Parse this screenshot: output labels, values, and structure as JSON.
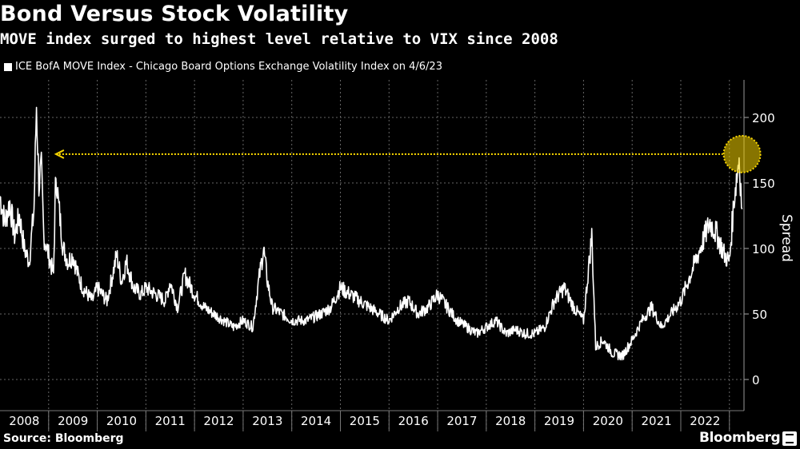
{
  "header": {
    "title": "Bond Versus Stock Volatility",
    "subtitle": "MOVE index surged to highest level relative to VIX since 2008"
  },
  "footer": {
    "source": "Source: Bloomberg",
    "brand": "Bloomberg"
  },
  "colors": {
    "background": "#000000",
    "line": "#ffffff",
    "highlight": "#f5d300",
    "grid": "#666666"
  },
  "chart_data": {
    "type": "line",
    "title": "Bond Versus Stock Volatility",
    "subtitle": "MOVE index surged to highest level relative to VIX since 2008",
    "series": [
      {
        "name": "ICE BofA MOVE Index - Chicago Board Options Exchange Volatility Index on 4/6/23",
        "x": [
          2008.0,
          2008.1,
          2008.2,
          2008.3,
          2008.4,
          2008.5,
          2008.6,
          2008.7,
          2008.75,
          2008.8,
          2008.85,
          2008.9,
          2009.0,
          2009.1,
          2009.15,
          2009.2,
          2009.3,
          2009.4,
          2009.5,
          2009.6,
          2009.7,
          2009.8,
          2009.9,
          2010.0,
          2010.2,
          2010.4,
          2010.5,
          2010.6,
          2010.75,
          2010.9,
          2011.0,
          2011.2,
          2011.4,
          2011.5,
          2011.65,
          2011.8,
          2012.0,
          2012.2,
          2012.4,
          2012.6,
          2012.8,
          2013.0,
          2013.2,
          2013.3,
          2013.42,
          2013.5,
          2013.6,
          2013.8,
          2014.0,
          2014.3,
          2014.6,
          2014.8,
          2015.0,
          2015.2,
          2015.4,
          2015.6,
          2015.8,
          2016.0,
          2016.2,
          2016.4,
          2016.6,
          2016.8,
          2017.0,
          2017.2,
          2017.4,
          2017.6,
          2017.8,
          2018.0,
          2018.2,
          2018.4,
          2018.6,
          2018.8,
          2019.0,
          2019.2,
          2019.4,
          2019.6,
          2019.8,
          2020.0,
          2020.17,
          2020.25,
          2020.4,
          2020.6,
          2020.8,
          2021.0,
          2021.2,
          2021.4,
          2021.6,
          2021.8,
          2022.0,
          2022.2,
          2022.4,
          2022.6,
          2022.75,
          2022.9,
          2023.0,
          2023.1,
          2023.2,
          2023.26
        ],
        "y": [
          140,
          120,
          135,
          110,
          125,
          100,
          90,
          130,
          210,
          150,
          160,
          110,
          95,
          80,
          160,
          135,
          100,
          90,
          95,
          80,
          70,
          65,
          60,
          70,
          60,
          95,
          75,
          90,
          70,
          65,
          70,
          65,
          60,
          75,
          55,
          80,
          65,
          55,
          50,
          45,
          40,
          45,
          40,
          70,
          100,
          75,
          55,
          50,
          45,
          45,
          50,
          55,
          70,
          65,
          60,
          55,
          50,
          45,
          55,
          60,
          50,
          55,
          65,
          55,
          45,
          40,
          35,
          40,
          45,
          35,
          38,
          35,
          35,
          40,
          60,
          70,
          55,
          45,
          110,
          25,
          30,
          20,
          18,
          30,
          45,
          55,
          40,
          50,
          60,
          80,
          100,
          120,
          110,
          95,
          90,
          140,
          170,
          130
        ]
      }
    ],
    "x_ticks": [
      "2008",
      "2009",
      "2010",
      "2011",
      "2012",
      "2013",
      "2014",
      "2015",
      "2016",
      "2017",
      "2018",
      "2019",
      "2020",
      "2021",
      "2022"
    ],
    "y_ticks": [
      0,
      50,
      100,
      150,
      200
    ],
    "ylabel": "Spread",
    "xlim": [
      2008.0,
      2023.3
    ],
    "ylim": [
      -10,
      230
    ],
    "grid": true,
    "legend_position": "top-left",
    "annotation": {
      "type": "highlight-circle-with-reference-arrow",
      "x": 2023.26,
      "y": 172,
      "line_from_x": 2009.15,
      "color": "#f5d300"
    }
  }
}
